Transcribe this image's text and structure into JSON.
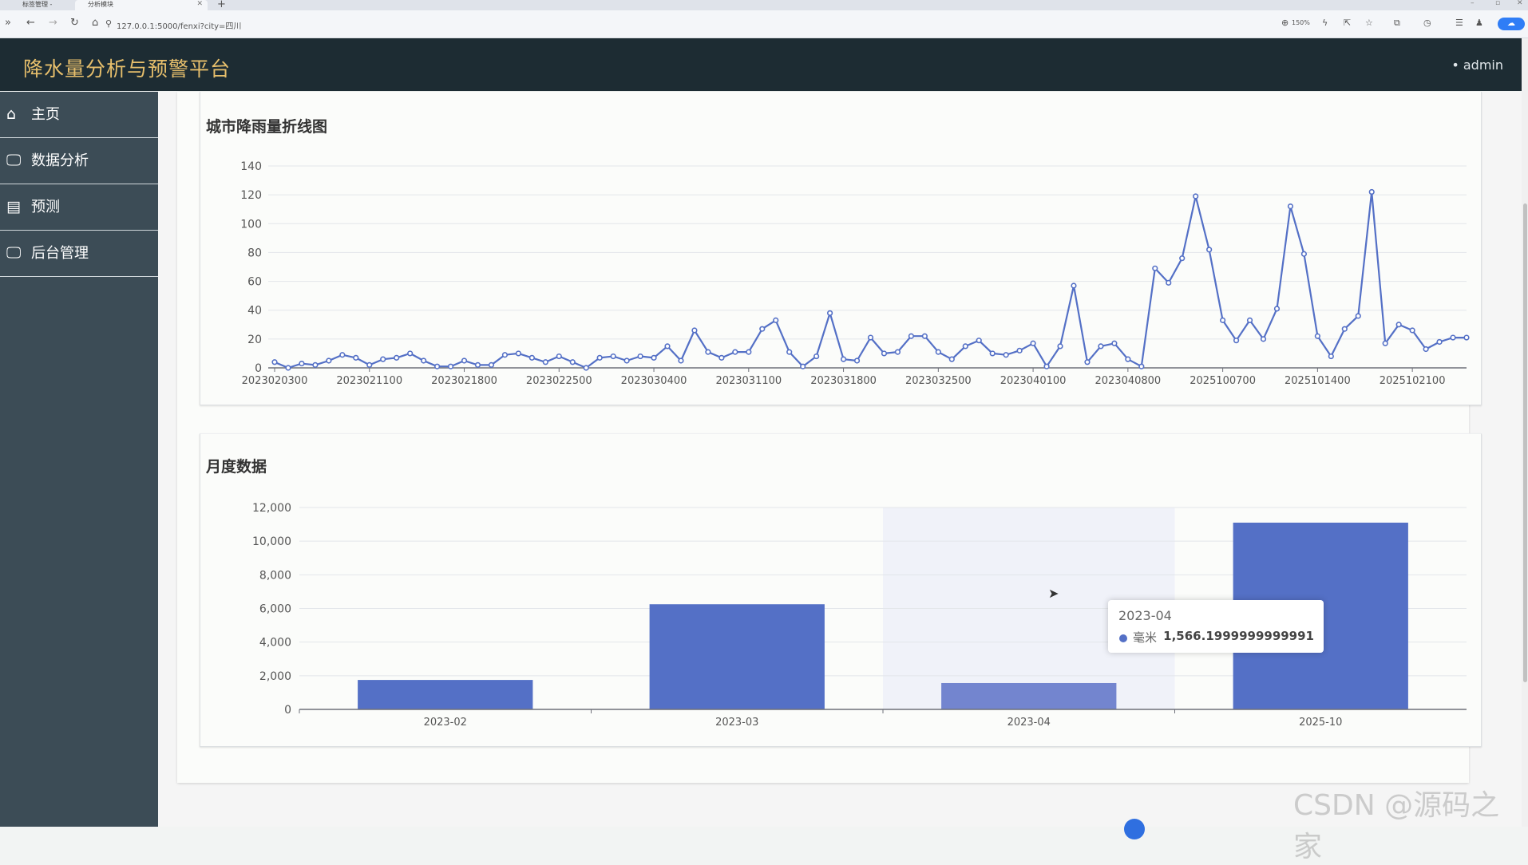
{
  "browser": {
    "tab1": "标签管理 -",
    "tab2": "分析模块",
    "url": "127.0.0.1:5000/fenxi?city=四川",
    "zoom": "150%"
  },
  "header": {
    "title": "降水量分析与预警平台",
    "user": "• admin"
  },
  "sidebar": {
    "items": [
      {
        "label": "主页",
        "icon": "home-icon"
      },
      {
        "label": "数据分析",
        "icon": "monitor-icon"
      },
      {
        "label": "预测",
        "icon": "document-icon"
      },
      {
        "label": "后台管理",
        "icon": "monitor-icon"
      }
    ]
  },
  "charts": {
    "line_title": "城市降雨量折线图",
    "bar_title": "月度数据"
  },
  "tooltip": {
    "title": "2023-04",
    "series": "毫米",
    "value": "1,566.1999999999991"
  },
  "watermark": "CSDN @源码之家",
  "colors": {
    "series": "#5470c6",
    "highlight": "#7385cf",
    "header_bg": "#1d2c33",
    "title": "#e7bf6c",
    "sidebar_bg": "#3c4c56"
  },
  "chart_data": [
    {
      "type": "line",
      "title": "城市降雨量折线图",
      "x_tick_labels": [
        "2023020300",
        "2023021100",
        "2023021800",
        "2023022500",
        "2023030400",
        "2023031100",
        "2023031800",
        "2023032500",
        "2023040100",
        "2023040800",
        "2025100700",
        "2025101400",
        "2025102100"
      ],
      "y_ticks": [
        0,
        20,
        40,
        60,
        80,
        100,
        120,
        140
      ],
      "ylim": [
        0,
        140
      ],
      "grid": true,
      "values": [
        4,
        0,
        3,
        2,
        5,
        9,
        7,
        2,
        6,
        7,
        10,
        5,
        1,
        1,
        5,
        2,
        2,
        9,
        10,
        7,
        4,
        8,
        4,
        0,
        7,
        8,
        5,
        8,
        7,
        15,
        5,
        26,
        11,
        7,
        11,
        11,
        27,
        33,
        11,
        1,
        8,
        38,
        6,
        5,
        21,
        10,
        11,
        22,
        22,
        11,
        6,
        15,
        19,
        10,
        9,
        12,
        17,
        1,
        15,
        57,
        4,
        15,
        17,
        6,
        1,
        69,
        59,
        76,
        119,
        82,
        33,
        19,
        33,
        20,
        41,
        112,
        79,
        22,
        8,
        27,
        36,
        122,
        17,
        30,
        26,
        13,
        18,
        21,
        21
      ]
    },
    {
      "type": "bar",
      "title": "月度数据",
      "categories": [
        "2023-02",
        "2023-03",
        "2023-04",
        "2025-10"
      ],
      "values": [
        1750,
        6250,
        1566.2,
        11100
      ],
      "y_ticks": [
        0,
        2000,
        4000,
        6000,
        8000,
        10000,
        12000
      ],
      "ylim": [
        0,
        12000
      ],
      "grid": true,
      "highlighted_category": "2023-04"
    }
  ]
}
